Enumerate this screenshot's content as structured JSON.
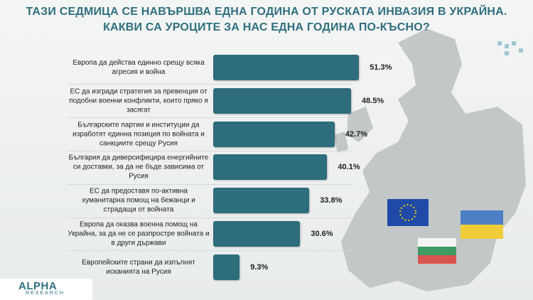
{
  "chart_data": {
    "type": "bar",
    "orientation": "horizontal",
    "title": [
      "ТАЗИ СЕДМИЦА СЕ НАВЪРШВА ЕДНА ГОДИНА ОТ РУСКАТА ИНВАЗИЯ В УКРАЙНА.",
      "КАКВИ СА УРОЦИТЕ ЗА НАС ЕДНА ГОДИНА ПО-КЪСНО?"
    ],
    "categories": [
      "Европа да действа единно срещу всяка агресия и война",
      "ЕС да изгради стратегия за превенция от подобни военни конфликти, които пряко я засягат",
      "Българските партии и институции да изработят единна позиция по войната и санкциите срещу Русия",
      "България да диверсифицира енергийните си доставки, за да не бъде зависима от Русия",
      "ЕС да предоставя по-активна хуманитарна помощ на бежанци и страдащи от войната",
      "Европа да оказва военна помощ на Украйна, за да не се разпростре войната и в други държави",
      "Европейските страни да изпълнят исканията на Русия"
    ],
    "values": [
      51.3,
      48.5,
      42.7,
      40.1,
      33.8,
      30.6,
      9.3
    ],
    "value_labels": [
      "51.3%",
      "48.5%",
      "42.7%",
      "40.1%",
      "33.8%",
      "30.6%",
      "9.3%"
    ],
    "color": "#2e6d7b"
  },
  "logo": {
    "name": "ALPHA",
    "sub": "RESEARCH"
  }
}
